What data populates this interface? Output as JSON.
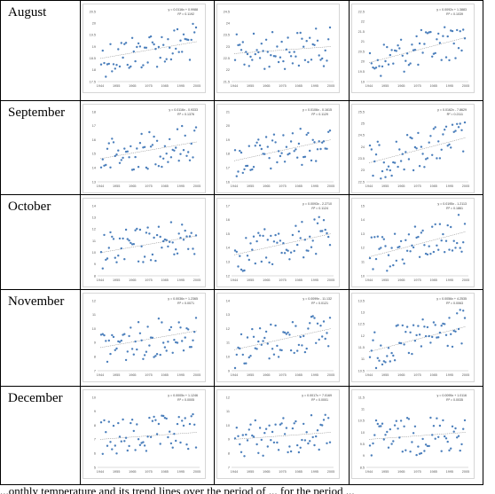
{
  "months": [
    {
      "label": "August",
      "charts": [
        {
          "type": "scatter",
          "equation": "y = 0.0116x + 0.9988",
          "r2": "R² = 0.1192",
          "x_ticks": [
            "1944",
            "1955",
            "1965",
            "1975",
            "1985",
            "1995",
            "2005"
          ],
          "y_ticks": [
            "20.5",
            "20",
            "19.5",
            "19",
            "18.5",
            "18",
            "17.5"
          ]
        },
        {
          "type": "scatter",
          "equation": "",
          "r2": "",
          "x_ticks": [
            "1944",
            "1955",
            "1965",
            "1975",
            "1985",
            "1995",
            "2005"
          ],
          "y_ticks": [
            "24.5",
            "24",
            "23.5",
            "23",
            "22.5",
            "22",
            "21.5"
          ]
        },
        {
          "type": "scatter",
          "equation": "y = 0.0092x + 1.3883",
          "r2": "R² = 0.1039",
          "x_ticks": [
            "1944",
            "1955",
            "1965",
            "1975",
            "1985",
            "1995",
            "2005"
          ],
          "y_ticks": [
            "22.5",
            "22",
            "21.5",
            "21",
            "20.5",
            "20",
            "19.5",
            "19"
          ]
        }
      ]
    },
    {
      "label": "September",
      "charts": [
        {
          "type": "scatter",
          "equation": "y = 0.0116x - 0.9333",
          "r2": "R² = 0.1376",
          "x_ticks": [
            "1944",
            "1955",
            "1965",
            "1975",
            "1985",
            "1995",
            "2005"
          ],
          "y_ticks": [
            "18",
            "17",
            "16",
            "15",
            "14",
            "13"
          ]
        },
        {
          "type": "scatter",
          "equation": "y = 0.0106x - 0.1615",
          "r2": "R² = 0.1129",
          "x_ticks": [
            "1944",
            "1955",
            "1965",
            "1975",
            "1985",
            "1995",
            "2005"
          ],
          "y_ticks": [
            "21",
            "20",
            "19",
            "18",
            "17",
            "16"
          ]
        },
        {
          "type": "scatter",
          "equation": "y = 0.0162x - 7.8629",
          "r2": "R² = 0.2111",
          "x_ticks": [
            "1944",
            "1955",
            "1965",
            "1975",
            "1985",
            "1995",
            "2005"
          ],
          "y_ticks": [
            "25.5",
            "25",
            "24.5",
            "24",
            "23.5",
            "23",
            "22.5"
          ]
        }
      ]
    },
    {
      "label": "October",
      "charts": [
        {
          "type": "scatter",
          "equation": "",
          "r2": "",
          "x_ticks": [
            "1944",
            "1955",
            "1965",
            "1975",
            "1985",
            "1995",
            "2005"
          ],
          "y_ticks": [
            "14",
            "13",
            "12",
            "11",
            "10",
            "9",
            "8"
          ]
        },
        {
          "type": "scatter",
          "equation": "y = 0.0093x - 2.2710",
          "r2": "R² = 0.1124",
          "x_ticks": [
            "1944",
            "1955",
            "1965",
            "1975",
            "1985",
            "1995",
            "2005"
          ],
          "y_ticks": [
            "17",
            "16",
            "15",
            "14",
            "13",
            "12"
          ]
        },
        {
          "type": "scatter",
          "equation": "y = 0.0195x - 1.2113",
          "r2": "R² = 0.1861",
          "x_ticks": [
            "1944",
            "1955",
            "1965",
            "1975",
            "1985",
            "1995",
            "2005"
          ],
          "y_ticks": [
            "15",
            "14",
            "13",
            "12",
            "11",
            "10"
          ]
        }
      ]
    },
    {
      "label": "November",
      "charts": [
        {
          "type": "scatter",
          "equation": "y = 0.0036x + 1.2365",
          "r2": "R² = 0.0071",
          "x_ticks": [
            "1944",
            "1955",
            "1965",
            "1975",
            "1985",
            "1995",
            "2005"
          ],
          "y_ticks": [
            "12",
            "11",
            "10",
            "9",
            "8",
            "7"
          ]
        },
        {
          "type": "scatter",
          "equation": "y = 0.0099x - 11.132",
          "r2": "R² = 0.0121",
          "x_ticks": [
            "1944",
            "1955",
            "1965",
            "1975",
            "1985",
            "1995",
            "2005"
          ],
          "y_ticks": [
            "14",
            "13",
            "12",
            "11",
            "10",
            "9"
          ]
        },
        {
          "type": "scatter",
          "equation": "y = 0.0056x + 4.2535",
          "r2": "R² = 0.0063",
          "x_ticks": [
            "1944",
            "1955",
            "1965",
            "1975",
            "1985",
            "1995",
            "2005"
          ],
          "y_ticks": [
            "13.5",
            "13",
            "12.5",
            "12",
            "11.5",
            "11",
            "10.5"
          ]
        }
      ]
    },
    {
      "label": "December",
      "charts": [
        {
          "type": "scatter",
          "equation": "y = 0.0005x + 1.1246",
          "r2": "R² = 0.0005",
          "x_ticks": [
            "1944",
            "1955",
            "1965",
            "1975",
            "1985",
            "1995",
            "2005"
          ],
          "y_ticks": [
            "10",
            "9",
            "8",
            "7",
            "6",
            "5"
          ]
        },
        {
          "type": "scatter",
          "equation": "y = 0.0017x + 7.0169",
          "r2": "R² = 0.0001",
          "x_ticks": [
            "1944",
            "1955",
            "1965",
            "1975",
            "1985",
            "1995",
            "2005"
          ],
          "y_ticks": [
            "12",
            "11",
            "10",
            "9",
            "8",
            "7"
          ]
        },
        {
          "type": "scatter",
          "equation": "y = 0.0095x + 1.0116",
          "r2": "R² = 0.0035",
          "x_ticks": [
            "1944",
            "1955",
            "1965",
            "1975",
            "1985",
            "1995",
            "2005"
          ],
          "y_ticks": [
            "11.5",
            "11",
            "10.5",
            "10",
            "9.5",
            "9",
            "8.5"
          ]
        }
      ]
    }
  ],
  "caption": "...onthly temperature and its trend lines over the period of ... for the period ...",
  "colors": {
    "point": "#4a7ebb",
    "trend": "#7f7f7f",
    "border": "#000000",
    "chart_border": "#d6d6d6",
    "tick_text": "#595959"
  }
}
